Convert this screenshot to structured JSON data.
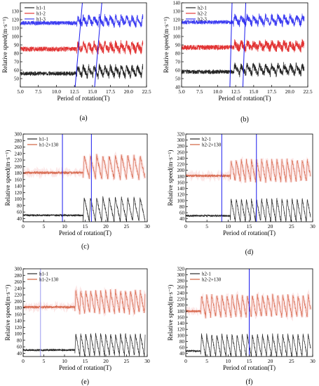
{
  "chart_data": [
    {
      "id": "a",
      "type": "line",
      "caption": "(a)",
      "xlabel": "Period of rotation(T)",
      "ylabel": "Relative speed(m·s⁻¹)",
      "xlim": [
        5.0,
        22.5
      ],
      "ylim": [
        40,
        140
      ],
      "xticks": [
        5.0,
        7.5,
        10.0,
        12.5,
        15.0,
        17.5,
        20.0,
        22.5
      ],
      "xtick_labels": [
        "5.0",
        "7.5",
        "10.0",
        "12.5",
        "15.0",
        "17.5",
        "20.0",
        "22.5"
      ],
      "yticks": [
        50,
        60,
        70,
        80,
        90,
        100,
        110,
        120,
        130
      ],
      "ytick_labels": [
        "50",
        "60",
        "70",
        "80",
        "90",
        "100",
        "110",
        "120",
        "130"
      ],
      "legend_position": "top-left",
      "series": [
        {
          "name": "h1-1",
          "color": "#000000",
          "base": 56,
          "band": 2.5,
          "amp": 17,
          "transition": 12.8,
          "period": 0.75,
          "stable_end": 22
        },
        {
          "name": "h1-2",
          "color": "#dd1111",
          "base": 85,
          "band": 3,
          "amp": 13,
          "transition": 12.8,
          "period": 0.75,
          "stable_end": 22
        },
        {
          "name": "h1-3",
          "color": "#1a1aee",
          "base": 116,
          "band": 2.5,
          "amp": 15,
          "transition": 12.8,
          "period": 0.75,
          "stable_end": 22
        }
      ],
      "vlines": [
        {
          "x1": 12.6,
          "x2": 13.6,
          "color": "#1a1aee"
        },
        {
          "x1": 15.3,
          "x2": 16.3,
          "color": "#1a1aee"
        }
      ]
    },
    {
      "id": "b",
      "type": "line",
      "caption": "(b)",
      "xlabel": "Period of rotation(T)",
      "ylabel": "Relative speed(m·s⁻¹)",
      "xlim": [
        5.0,
        22.5
      ],
      "ylim": [
        40,
        140
      ],
      "xticks": [
        5.0,
        7.5,
        10.0,
        12.5,
        15.0,
        17.5,
        20.0,
        22.5
      ],
      "xtick_labels": [
        "5.0",
        "7.5",
        "10.0",
        "12.5",
        "15.0",
        "17.5",
        "20.0",
        "22.5"
      ],
      "yticks": [
        40,
        50,
        60,
        70,
        80,
        90,
        100,
        110,
        120,
        130,
        140
      ],
      "ytick_labels": [
        "40",
        "50",
        "60",
        "70",
        "80",
        "90",
        "100",
        "110",
        "120",
        "130",
        "140"
      ],
      "legend_position": "top-left",
      "series": [
        {
          "name": "h2-1",
          "color": "#000000",
          "base": 58,
          "band": 2.5,
          "amp": 16,
          "transition": 12.2,
          "period": 0.85,
          "stable_end": 22
        },
        {
          "name": "h2-2",
          "color": "#dd1111",
          "base": 87,
          "band": 3,
          "amp": 11,
          "transition": 12.2,
          "period": 0.85,
          "stable_end": 22
        },
        {
          "name": "h2-3",
          "color": "#1a1aee",
          "base": 117,
          "band": 2.5,
          "amp": 14,
          "transition": 12.2,
          "period": 0.85,
          "stable_end": 22
        }
      ],
      "vlines": [
        {
          "x1": 11.7,
          "x2": 12.0,
          "color": "#1a1aee"
        },
        {
          "x1": 13.5,
          "x2": 13.9,
          "color": "#1a1aee"
        }
      ]
    },
    {
      "id": "c",
      "type": "line",
      "caption": "(c)",
      "xlabel": "Period of rotation(T)",
      "ylabel": "Relative speed(m·s⁻¹)",
      "xlim": [
        0,
        30
      ],
      "ylim": [
        30,
        300
      ],
      "xticks": [
        0,
        5,
        10,
        15,
        20,
        25,
        30
      ],
      "xtick_labels": [
        "0",
        "5",
        "10",
        "15",
        "20",
        "25",
        "30"
      ],
      "yticks": [
        40,
        60,
        80,
        100,
        120,
        140,
        160,
        180,
        200,
        220,
        240,
        260,
        280,
        300
      ],
      "ytick_labels": [
        "40",
        "60",
        "80",
        "100",
        "120",
        "140",
        "160",
        "180",
        "200",
        "220",
        "240",
        "260",
        "280",
        "300"
      ],
      "legend_position": "top-left",
      "series": [
        {
          "name": "h1-1",
          "color": "#000000",
          "base": 50,
          "band": 3,
          "amp": 110,
          "transition": 14.5,
          "period": 1.5,
          "stable_end": 29.5
        },
        {
          "name": "h1-2+130",
          "color": "#c8431a",
          "base": 181,
          "band": 4,
          "amp": 105,
          "transition": 14.5,
          "period": 1.5,
          "stable_end": 29.5
        }
      ],
      "vlines": [
        {
          "x1": 9.5,
          "x2": 9.5,
          "color": "#1a1aee"
        },
        {
          "x1": 16.5,
          "x2": 16.5,
          "color": "#1a1aee"
        }
      ]
    },
    {
      "id": "d",
      "type": "line",
      "caption": "(d)",
      "xlabel": "Period of rotation(T)",
      "ylabel": "Relative speed(m·s⁻¹)",
      "xlim": [
        0,
        30
      ],
      "ylim": [
        30,
        320
      ],
      "xticks": [
        0,
        5,
        10,
        15,
        20,
        25,
        30
      ],
      "xtick_labels": [
        "0",
        "5",
        "10",
        "15",
        "20",
        "25",
        "30"
      ],
      "yticks": [
        40,
        60,
        80,
        100,
        120,
        140,
        160,
        180,
        200,
        220,
        240,
        260,
        280,
        300,
        320
      ],
      "ytick_labels": [
        "40",
        "60",
        "80",
        "100",
        "120",
        "140",
        "160",
        "180",
        "200",
        "220",
        "240",
        "260",
        "280",
        "300",
        "320"
      ],
      "legend_position": "top-left",
      "series": [
        {
          "name": "h2-1",
          "color": "#000000",
          "base": 50,
          "band": 3,
          "amp": 110,
          "transition": 10.5,
          "period": 1.2,
          "stable_end": 29.5
        },
        {
          "name": "h2-2+130",
          "color": "#c8431a",
          "base": 182,
          "band": 4,
          "amp": 105,
          "transition": 10.5,
          "period": 1.2,
          "stable_end": 29.5
        }
      ],
      "vlines": [
        {
          "x1": 8.5,
          "x2": 8.5,
          "color": "#1a1aee"
        },
        {
          "x1": 16.7,
          "x2": 16.7,
          "color": "#1a1aee"
        }
      ]
    },
    {
      "id": "e",
      "type": "line",
      "caption": "(e)",
      "xlabel": "Period of rotation(T)",
      "ylabel": "Relative speed(m·s⁻¹)",
      "xlim": [
        0,
        30
      ],
      "ylim": [
        30,
        300
      ],
      "xticks": [
        0,
        5,
        10,
        15,
        20,
        25,
        30
      ],
      "xtick_labels": [
        "0",
        "5",
        "10",
        "15",
        "20",
        "25",
        "30"
      ],
      "yticks": [
        40,
        60,
        80,
        100,
        120,
        140,
        160,
        180,
        200,
        220,
        240,
        260,
        280,
        300
      ],
      "ytick_labels": [
        "40",
        "60",
        "80",
        "100",
        "120",
        "140",
        "160",
        "180",
        "200",
        "220",
        "240",
        "260",
        "280",
        "300"
      ],
      "legend_position": "top-left",
      "series": [
        {
          "name": "h1-1",
          "color": "#000000",
          "base": 50,
          "band": 3,
          "amp": 100,
          "transition": 12.5,
          "period": 1.2,
          "stable_end": 29.5
        },
        {
          "name": "h1-2+130",
          "color": "#c8431a",
          "base": 182,
          "band": 4,
          "amp": 100,
          "transition": 12.5,
          "period": 1.2,
          "stable_end": 29.5
        }
      ],
      "vlines": [
        {
          "x1": 4.2,
          "x2": 4.2,
          "color": "#9a9af0"
        }
      ]
    },
    {
      "id": "f",
      "type": "line",
      "caption": "(f)",
      "xlabel": "Period of rotation(T)",
      "ylabel": "Relative speed(m·s⁻¹)",
      "xlim": [
        0,
        30
      ],
      "ylim": [
        30,
        320
      ],
      "xticks": [
        0,
        5,
        10,
        15,
        20,
        25,
        30
      ],
      "xtick_labels": [
        "0",
        "5",
        "10",
        "15",
        "20",
        "25",
        "30"
      ],
      "yticks": [
        40,
        60,
        80,
        100,
        120,
        140,
        160,
        180,
        200,
        220,
        240,
        260,
        280,
        300,
        320
      ],
      "ytick_labels": [
        "40",
        "60",
        "80",
        "100",
        "120",
        "140",
        "160",
        "180",
        "200",
        "220",
        "240",
        "260",
        "280",
        "300",
        "320"
      ],
      "legend_position": "top-left",
      "series": [
        {
          "name": "h2-1",
          "color": "#000000",
          "base": 48,
          "band": 3,
          "amp": 110,
          "transition": 3.5,
          "period": 1.2,
          "stable_end": 29.5
        },
        {
          "name": "h2-2+130",
          "color": "#c8431a",
          "base": 180,
          "band": 4,
          "amp": 105,
          "transition": 3.5,
          "period": 1.2,
          "stable_end": 29.5
        }
      ],
      "vlines": [
        {
          "x1": 15.0,
          "x2": 15.0,
          "color": "#1a1aee"
        }
      ]
    }
  ]
}
